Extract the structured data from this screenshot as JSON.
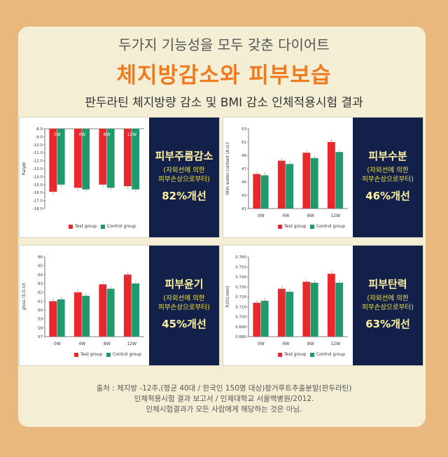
{
  "header": {
    "subtitle": "두가지 기능성을 모두 갖춘 다이어트",
    "title": "체지방감소와 피부보습",
    "caption": "판두라틴 체지방량 감소 및 BMI 감소 인체적용시험 결과"
  },
  "legend": {
    "test": "Test group",
    "control": "Control group"
  },
  "colors": {
    "test": "#e8282d",
    "control": "#1f9a6c",
    "navy": "#13204a"
  },
  "panels": [
    {
      "badge": {
        "title": "피부주름감소",
        "sub1": "(자외선에 의한",
        "sub2": "피부손상으로부터)",
        "pct": "82%개선"
      }
    },
    {
      "badge": {
        "title": "피부수분",
        "sub1": "(자외선에 의한",
        "sub2": "피부손상으로부터)",
        "pct": "46%개선"
      }
    },
    {
      "badge": {
        "title": "피부윤기",
        "sub1": "(자외선에 의한",
        "sub2": "피부손상으로부터)",
        "pct": "45%개선"
      }
    },
    {
      "badge": {
        "title": "피부탄력",
        "sub1": "(자외선에 의한",
        "sub2": "피부손상으로부터)",
        "pct": "63%개선"
      }
    }
  ],
  "chart_data": [
    {
      "type": "bar",
      "categories": [
        "0W",
        "4W",
        "8W",
        "12W"
      ],
      "ylabel": "Ra(㎛)",
      "ylim": [
        -18.0,
        -8.0
      ],
      "yticks": [
        "-8.0",
        "-9.0",
        "-10.0",
        "-11.0",
        "-12.0",
        "-13.0",
        "-14.0",
        "-15.0",
        "-16.0",
        "-17.0",
        "-18.0"
      ],
      "series": [
        {
          "name": "Test group",
          "values": [
            -15.9,
            -15.4,
            -15.0,
            -15.2
          ]
        },
        {
          "name": "Control group",
          "values": [
            -15.0,
            -15.6,
            -15.4,
            -15.6
          ]
        }
      ]
    },
    {
      "type": "bar",
      "categories": [
        "0W",
        "4W",
        "8W",
        "12W"
      ],
      "ylabel": "Skin water content (A.U.)",
      "ylim": [
        41,
        53
      ],
      "yticks": [
        "53",
        "51",
        "49",
        "47",
        "45",
        "43",
        "41"
      ],
      "series": [
        {
          "name": "Test group",
          "values": [
            46.2,
            48.2,
            49.4,
            51.0
          ]
        },
        {
          "name": "Control group",
          "values": [
            46.0,
            47.7,
            48.6,
            49.5
          ]
        }
      ]
    },
    {
      "type": "bar",
      "categories": [
        "0W",
        "4W",
        "8W",
        "12W"
      ],
      "ylabel": "gloss (S.G.U)",
      "ylim": [
        57,
        66
      ],
      "yticks": [
        "66",
        "65",
        "64",
        "63",
        "62",
        "61",
        "60",
        "59",
        "58",
        "57"
      ],
      "series": [
        {
          "name": "Test group",
          "values": [
            61.0,
            62.0,
            62.9,
            64.0
          ]
        },
        {
          "name": "Control group",
          "values": [
            61.2,
            61.6,
            62.4,
            63.0
          ]
        }
      ]
    },
    {
      "type": "bar",
      "categories": [
        "0W",
        "4W",
        "8W",
        "12W"
      ],
      "ylabel": "R2(U.mm)",
      "ylim": [
        0.68,
        0.76
      ],
      "yticks": [
        "0.760",
        "0.750",
        "0.740",
        "0.730",
        "0.720",
        "0.710",
        "0.700",
        "0.690",
        "0.680"
      ],
      "series": [
        {
          "name": "Test group",
          "values": [
            0.714,
            0.728,
            0.735,
            0.743
          ]
        },
        {
          "name": "Control group",
          "values": [
            0.716,
            0.725,
            0.734,
            0.734
          ]
        }
      ]
    }
  ],
  "footnote": {
    "line1": "출처 : 체지방 -12주,(평균 40대 / 한국인 150명 대상)팡거루트추출분말(판두라틴)",
    "line2": "인체적용시험 결과 보고서 / 인제대학교 서울백병원/2012.",
    "line3": "인체시험결과가 모든 사람에게 해당하는 것은 아님."
  }
}
